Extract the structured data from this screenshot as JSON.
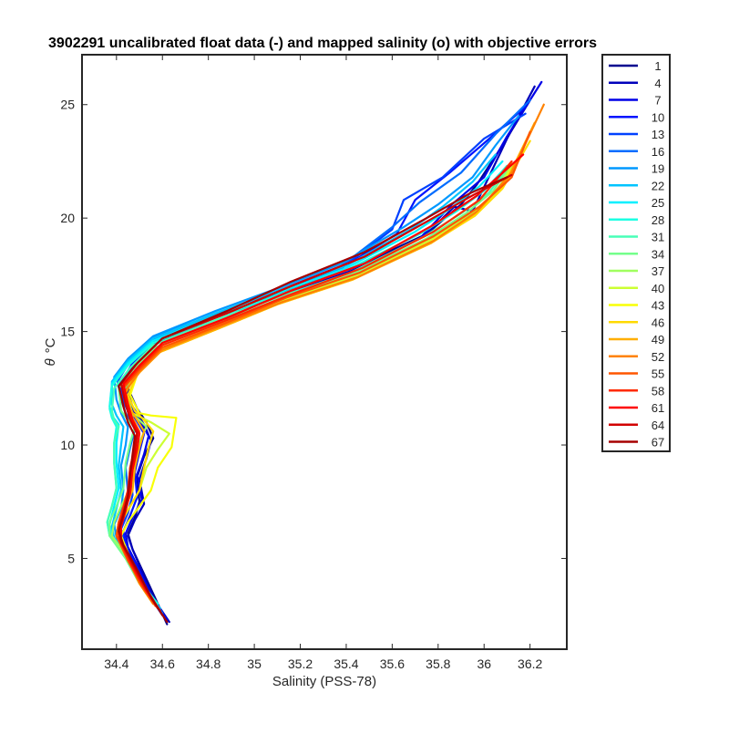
{
  "chart_data": {
    "type": "line",
    "title": "3902291 uncalibrated float data (-) and mapped salinity (o) with objective errors",
    "xlabel": "Salinity (PSS-78)",
    "ylabel_symbol": "θ",
    "ylabel_unit": "°C",
    "xlim": [
      34.25,
      36.36
    ],
    "ylim": [
      1.0,
      27.2
    ],
    "xticks": [
      "34.4",
      "34.6",
      "34.8",
      "35",
      "35.2",
      "35.4",
      "35.6",
      "35.8",
      "36",
      "36.2"
    ],
    "yticks": [
      "5",
      "10",
      "15",
      "20",
      "25"
    ],
    "grid": false,
    "legend_position": "outside-right",
    "colormap": "jet",
    "series": [
      {
        "name": "1",
        "color": "#00008f",
        "s": [
          34.62,
          34.58,
          34.53,
          34.47,
          34.45,
          34.48,
          34.5,
          34.49,
          34.52,
          34.56,
          34.53,
          34.49,
          34.45,
          34.46,
          34.48,
          34.58,
          34.85,
          35.12,
          35.43,
          35.75,
          35.9,
          35.97,
          36.08,
          36.2
        ],
        "t": [
          2.1,
          3.0,
          4.1,
          5.4,
          6.1,
          6.8,
          7.5,
          8.6,
          9.5,
          10.3,
          11.0,
          11.6,
          12.5,
          13.3,
          13.6,
          14.6,
          15.8,
          16.7,
          17.8,
          19.3,
          20.6,
          21.5,
          23.2,
          25.2
        ]
      },
      {
        "name": "4",
        "color": "#0000bb",
        "s": [
          34.63,
          34.57,
          34.52,
          34.47,
          34.45,
          34.48,
          34.52,
          34.5,
          34.53,
          34.55,
          34.52,
          34.47,
          34.44,
          34.47,
          34.58,
          34.85,
          35.12,
          35.43,
          35.74,
          35.87,
          35.95,
          36.1,
          36.22
        ],
        "t": [
          2.2,
          3.1,
          4.2,
          5.4,
          6.0,
          6.7,
          7.4,
          8.5,
          9.4,
          10.2,
          10.9,
          11.7,
          12.6,
          13.4,
          14.5,
          15.7,
          16.6,
          17.7,
          19.2,
          20.5,
          20.3,
          23.5,
          25.8
        ]
      },
      {
        "name": "7",
        "color": "#0000e7",
        "s": [
          34.62,
          34.56,
          34.51,
          34.45,
          34.44,
          34.47,
          34.51,
          34.49,
          34.52,
          34.54,
          34.5,
          34.46,
          34.43,
          34.47,
          34.58,
          34.85,
          35.12,
          35.42,
          35.72,
          35.86,
          36.0,
          36.1,
          36.25
        ],
        "t": [
          2.3,
          3.2,
          4.3,
          5.5,
          6.1,
          6.8,
          7.6,
          8.7,
          9.6,
          10.4,
          11.1,
          11.7,
          12.7,
          13.5,
          14.6,
          15.7,
          16.6,
          17.6,
          19.1,
          20.6,
          21.8,
          23.6,
          26.0
        ]
      },
      {
        "name": "10",
        "color": "#0014ff",
        "s": [
          34.61,
          34.55,
          34.5,
          34.44,
          34.43,
          34.46,
          34.49,
          34.48,
          34.5,
          34.52,
          34.48,
          34.45,
          34.42,
          34.47,
          34.58,
          34.85,
          35.1,
          35.38,
          35.62,
          35.7,
          35.85,
          36.0,
          36.18
        ],
        "t": [
          2.4,
          3.3,
          4.4,
          5.6,
          6.2,
          6.9,
          7.7,
          8.8,
          9.7,
          10.5,
          11.2,
          11.8,
          12.8,
          13.6,
          14.7,
          15.8,
          16.7,
          17.8,
          19.3,
          20.8,
          22.0,
          23.3,
          24.9
        ]
      },
      {
        "name": "13",
        "color": "#0040ff",
        "s": [
          34.6,
          34.54,
          34.48,
          34.43,
          34.42,
          34.45,
          34.47,
          34.46,
          34.48,
          34.5,
          34.46,
          34.43,
          34.41,
          34.46,
          34.57,
          34.84,
          35.1,
          35.38,
          35.6,
          35.65,
          35.82,
          36.0,
          36.18
        ],
        "t": [
          2.5,
          3.4,
          4.5,
          5.7,
          6.3,
          7.0,
          7.8,
          8.9,
          9.8,
          10.6,
          11.3,
          11.9,
          12.9,
          13.7,
          14.7,
          15.8,
          16.7,
          17.8,
          19.5,
          20.8,
          21.8,
          23.5,
          24.6
        ]
      },
      {
        "name": "16",
        "color": "#006cff",
        "s": [
          34.6,
          34.54,
          34.48,
          34.42,
          34.41,
          34.44,
          34.45,
          34.44,
          34.46,
          34.48,
          34.44,
          34.42,
          34.4,
          34.46,
          34.57,
          34.84,
          35.1,
          35.38,
          35.6,
          35.72,
          35.9,
          36.05,
          36.2
        ],
        "t": [
          2.6,
          3.5,
          4.6,
          5.8,
          6.4,
          7.1,
          7.9,
          9.0,
          9.9,
          10.7,
          11.4,
          12.0,
          13.0,
          13.7,
          14.8,
          15.8,
          16.8,
          17.9,
          19.6,
          20.7,
          22.0,
          23.7,
          25.2
        ]
      },
      {
        "name": "19",
        "color": "#0098ff",
        "s": [
          34.59,
          34.53,
          34.47,
          34.4,
          34.39,
          34.42,
          34.43,
          34.42,
          34.44,
          34.45,
          34.42,
          34.4,
          34.39,
          34.45,
          34.56,
          34.83,
          35.1,
          35.38,
          35.65,
          35.8,
          35.95,
          36.05,
          36.15
        ],
        "t": [
          2.7,
          3.6,
          4.7,
          5.9,
          6.5,
          7.2,
          8.0,
          9.1,
          10.0,
          10.8,
          11.4,
          12.0,
          13.0,
          13.8,
          14.8,
          15.9,
          16.9,
          18.0,
          19.6,
          20.6,
          21.8,
          23.2,
          24.5
        ]
      },
      {
        "name": "22",
        "color": "#00c4ff",
        "s": [
          34.59,
          34.52,
          34.46,
          34.39,
          34.38,
          34.4,
          34.42,
          34.41,
          34.42,
          34.43,
          34.4,
          34.38,
          34.38,
          34.45,
          34.56,
          34.83,
          35.1,
          35.4,
          35.68,
          35.82,
          35.95,
          36.05
        ],
        "t": [
          2.8,
          3.7,
          4.8,
          5.9,
          6.4,
          7.2,
          8.0,
          9.1,
          10.0,
          10.8,
          11.3,
          11.8,
          12.8,
          13.7,
          14.7,
          15.8,
          16.8,
          17.9,
          19.5,
          20.5,
          21.6,
          22.8
        ]
      },
      {
        "name": "25",
        "color": "#00f0ff",
        "s": [
          34.58,
          34.52,
          34.46,
          34.38,
          34.37,
          34.39,
          34.41,
          34.4,
          34.4,
          34.41,
          34.38,
          34.37,
          34.38,
          34.45,
          34.56,
          34.83,
          35.1,
          35.4,
          35.7,
          35.85,
          35.98,
          36.08
        ],
        "t": [
          2.9,
          3.8,
          4.9,
          6.0,
          6.5,
          7.3,
          8.1,
          9.2,
          10.1,
          10.9,
          11.3,
          11.7,
          12.7,
          13.6,
          14.6,
          15.7,
          16.7,
          17.8,
          19.4,
          20.4,
          21.4,
          22.5
        ]
      },
      {
        "name": "28",
        "color": "#1cffe3",
        "s": [
          34.58,
          34.51,
          34.45,
          34.37,
          34.36,
          34.38,
          34.4,
          34.39,
          34.39,
          34.4,
          34.38,
          34.37,
          34.38,
          34.45,
          34.56,
          34.83,
          35.1,
          35.4,
          35.72,
          35.88,
          36.0,
          36.1
        ],
        "t": [
          3.0,
          3.9,
          5.0,
          6.0,
          6.6,
          7.3,
          8.1,
          9.2,
          10.1,
          10.8,
          11.2,
          11.6,
          12.6,
          13.5,
          14.5,
          15.6,
          16.6,
          17.7,
          19.3,
          20.3,
          21.2,
          22.3
        ]
      },
      {
        "name": "31",
        "color": "#48ffb7",
        "s": [
          34.57,
          34.5,
          34.44,
          34.37,
          34.36,
          34.38,
          34.4,
          34.39,
          34.39,
          34.41,
          34.39,
          34.38,
          34.39,
          34.46,
          34.56,
          34.83,
          35.1,
          35.42,
          35.74,
          35.9,
          36.02,
          36.1
        ],
        "t": [
          3.0,
          3.9,
          5.0,
          6.0,
          6.6,
          7.3,
          8.1,
          9.2,
          10.1,
          10.8,
          11.1,
          11.5,
          12.5,
          13.4,
          14.4,
          15.5,
          16.5,
          17.6,
          19.2,
          20.2,
          21.1,
          22.2
        ]
      },
      {
        "name": "34",
        "color": "#74ff8b",
        "s": [
          34.57,
          34.5,
          34.44,
          34.37,
          34.37,
          34.4,
          34.43,
          34.44,
          34.46,
          34.48,
          34.45,
          34.42,
          34.41,
          34.47,
          34.57,
          34.84,
          35.1,
          35.42,
          35.75,
          35.92,
          36.04,
          36.12
        ],
        "t": [
          3.0,
          3.9,
          5.0,
          6.0,
          6.6,
          7.3,
          8.1,
          9.2,
          10.1,
          10.8,
          11.1,
          11.5,
          12.5,
          13.3,
          14.3,
          15.4,
          16.4,
          17.5,
          19.1,
          20.2,
          21.2,
          22.4
        ]
      },
      {
        "name": "37",
        "color": "#a0ff5f",
        "s": [
          34.56,
          34.5,
          34.45,
          34.38,
          34.39,
          34.42,
          34.46,
          34.48,
          34.5,
          34.53,
          34.5,
          34.45,
          34.43,
          34.48,
          34.58,
          34.85,
          35.1,
          35.43,
          35.76,
          35.93,
          36.05,
          36.12
        ],
        "t": [
          3.0,
          3.9,
          5.0,
          6.0,
          6.6,
          7.3,
          8.1,
          9.2,
          10.1,
          10.8,
          11.1,
          11.5,
          12.4,
          13.2,
          14.2,
          15.3,
          16.3,
          17.4,
          19.0,
          20.1,
          21.1,
          22.3
        ]
      },
      {
        "name": "40",
        "color": "#ccff33",
        "s": [
          34.56,
          34.5,
          34.45,
          34.4,
          34.42,
          34.46,
          34.5,
          34.53,
          34.58,
          34.63,
          34.55,
          34.47,
          34.44,
          34.48,
          34.58,
          34.85,
          35.1,
          35.43,
          35.76,
          35.94,
          36.06,
          36.12
        ],
        "t": [
          3.0,
          3.9,
          5.0,
          6.0,
          6.6,
          7.3,
          8.0,
          9.0,
          9.8,
          10.5,
          11.0,
          11.4,
          12.3,
          13.2,
          14.2,
          15.3,
          16.3,
          17.4,
          19.0,
          20.1,
          21.1,
          22.4
        ]
      },
      {
        "name": "43",
        "color": "#f8ff07",
        "s": [
          34.56,
          34.5,
          34.46,
          34.42,
          34.45,
          34.5,
          34.55,
          34.58,
          34.64,
          34.66,
          34.55,
          34.5,
          34.46,
          34.49,
          34.59,
          34.86,
          35.1,
          35.43,
          35.76,
          35.95,
          36.06,
          36.14
        ],
        "t": [
          3.0,
          3.9,
          5.0,
          6.0,
          6.6,
          7.3,
          8.0,
          9.0,
          9.9,
          11.2,
          11.3,
          11.4,
          12.2,
          13.1,
          14.1,
          15.2,
          16.2,
          17.3,
          18.9,
          20.1,
          21.1,
          22.5
        ]
      },
      {
        "name": "46",
        "color": "#ffda00",
        "s": [
          34.56,
          34.5,
          34.45,
          34.4,
          34.42,
          34.46,
          34.5,
          34.52,
          34.54,
          34.56,
          34.52,
          34.48,
          34.45,
          34.49,
          34.59,
          34.86,
          35.1,
          35.43,
          35.77,
          35.96,
          36.08,
          36.2
        ],
        "t": [
          3.0,
          3.9,
          5.0,
          6.0,
          6.6,
          7.3,
          8.0,
          9.0,
          9.9,
          10.6,
          11.1,
          11.5,
          12.2,
          13.1,
          14.1,
          15.2,
          16.2,
          17.3,
          18.9,
          20.1,
          21.3,
          23.4
        ]
      },
      {
        "name": "49",
        "color": "#ffae00",
        "s": [
          34.56,
          34.5,
          34.45,
          34.4,
          34.41,
          34.44,
          34.47,
          34.48,
          34.5,
          34.52,
          34.49,
          34.46,
          34.44,
          34.49,
          34.59,
          34.86,
          35.1,
          35.43,
          35.77,
          35.96,
          36.1,
          36.22
        ],
        "t": [
          3.0,
          3.9,
          5.0,
          6.0,
          6.6,
          7.3,
          8.0,
          9.0,
          9.9,
          10.6,
          11.1,
          11.6,
          12.3,
          13.2,
          14.1,
          15.2,
          16.2,
          17.3,
          18.9,
          20.2,
          21.7,
          24.2
        ]
      },
      {
        "name": "52",
        "color": "#ff8200",
        "s": [
          34.56,
          34.5,
          34.45,
          34.4,
          34.41,
          34.44,
          34.46,
          34.47,
          34.49,
          34.5,
          34.47,
          34.45,
          34.44,
          34.5,
          34.6,
          34.87,
          35.12,
          35.45,
          35.78,
          35.97,
          36.12,
          36.26
        ],
        "t": [
          3.0,
          3.9,
          5.0,
          6.0,
          6.6,
          7.3,
          8.0,
          9.0,
          9.9,
          10.6,
          11.2,
          11.7,
          12.4,
          13.2,
          14.2,
          15.3,
          16.3,
          17.4,
          19.0,
          20.3,
          22.0,
          25.0
        ]
      },
      {
        "name": "55",
        "color": "#ff5600",
        "s": [
          34.57,
          34.51,
          34.45,
          34.4,
          34.41,
          34.43,
          34.45,
          34.46,
          34.48,
          34.49,
          34.46,
          34.44,
          34.43,
          34.5,
          34.6,
          34.88,
          35.14,
          35.46,
          35.78,
          35.98,
          36.12,
          36.2
        ],
        "t": [
          2.9,
          3.8,
          4.9,
          6.0,
          6.6,
          7.3,
          8.0,
          9.0,
          9.9,
          10.6,
          11.2,
          11.8,
          12.5,
          13.3,
          14.3,
          15.4,
          16.5,
          17.6,
          19.2,
          20.5,
          21.8,
          23.8
        ]
      },
      {
        "name": "58",
        "color": "#ff2a00",
        "s": [
          34.58,
          34.52,
          34.46,
          34.41,
          34.41,
          34.43,
          34.45,
          34.46,
          34.48,
          34.49,
          34.46,
          34.44,
          34.43,
          34.5,
          34.6,
          34.88,
          35.15,
          35.47,
          35.78,
          35.98,
          36.12
        ],
        "t": [
          2.8,
          3.7,
          4.8,
          5.9,
          6.5,
          7.2,
          8.0,
          9.0,
          9.9,
          10.6,
          11.2,
          11.8,
          12.6,
          13.4,
          14.4,
          15.5,
          16.6,
          17.8,
          19.4,
          20.8,
          22.5
        ]
      },
      {
        "name": "61",
        "color": "#fe0000",
        "s": [
          34.59,
          34.53,
          34.47,
          34.42,
          34.42,
          34.44,
          34.46,
          34.47,
          34.49,
          34.5,
          34.47,
          34.45,
          34.43,
          34.5,
          34.6,
          34.88,
          35.16,
          35.48,
          35.78,
          35.97,
          36.17
        ],
        "t": [
          2.7,
          3.6,
          4.7,
          5.8,
          6.4,
          7.1,
          7.9,
          8.9,
          9.8,
          10.5,
          11.1,
          11.8,
          12.7,
          13.5,
          14.5,
          15.6,
          16.8,
          18.0,
          19.7,
          21.0,
          22.8
        ]
      },
      {
        "name": "64",
        "color": "#d20000",
        "s": [
          34.6,
          34.54,
          34.48,
          34.42,
          34.41,
          34.43,
          34.45,
          34.46,
          34.48,
          34.49,
          34.46,
          34.44,
          34.42,
          34.49,
          34.6,
          34.88,
          35.16,
          35.48,
          35.76,
          35.95,
          36.12
        ],
        "t": [
          2.5,
          3.5,
          4.6,
          5.7,
          6.3,
          7.0,
          7.8,
          8.8,
          9.7,
          10.5,
          11.1,
          11.8,
          12.7,
          13.6,
          14.7,
          15.8,
          17.0,
          18.3,
          19.9,
          21.0,
          21.9
        ]
      },
      {
        "name": "67",
        "color": "#a60000",
        "s": [
          34.62,
          34.55,
          34.49,
          34.43,
          34.41,
          34.43,
          34.45,
          34.46,
          34.47,
          34.48,
          34.45,
          34.43,
          34.41,
          34.48,
          34.6,
          34.88,
          35.16,
          35.48,
          35.75,
          35.94,
          36.1
        ],
        "t": [
          2.2,
          3.3,
          4.5,
          5.6,
          6.2,
          6.9,
          7.7,
          8.7,
          9.6,
          10.4,
          11.0,
          11.7,
          12.6,
          13.5,
          14.7,
          15.9,
          17.2,
          18.5,
          20.0,
          21.1,
          21.8
        ]
      }
    ]
  }
}
